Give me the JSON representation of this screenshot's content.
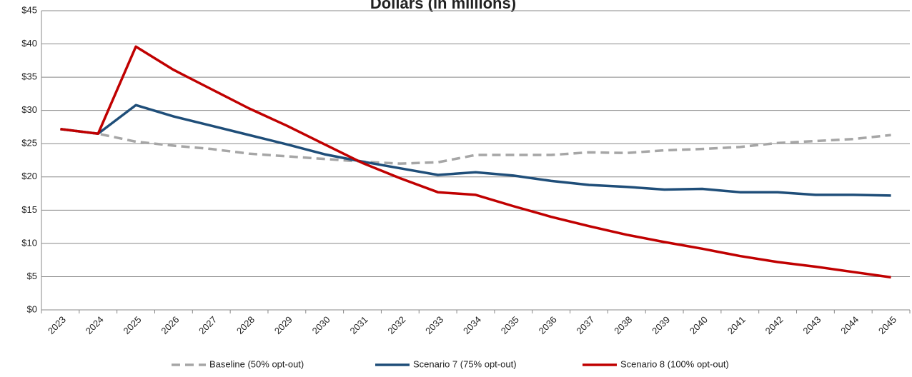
{
  "chart_data": {
    "type": "line",
    "title": "Dollars (in millions)",
    "categories": [
      "2023",
      "2024",
      "2025",
      "2026",
      "2027",
      "2028",
      "2029",
      "2030",
      "2031",
      "2032",
      "2033",
      "2034",
      "2035",
      "2036",
      "2037",
      "2038",
      "2039",
      "2040",
      "2041",
      "2042",
      "2043",
      "2044",
      "2045"
    ],
    "series": [
      {
        "name": "Baseline (50% opt-out)",
        "color": "#a6a6a6",
        "dashed": true,
        "values": [
          27.2,
          26.5,
          25.3,
          24.7,
          24.2,
          23.5,
          23.1,
          22.7,
          22.3,
          22.0,
          22.2,
          23.3,
          23.3,
          23.3,
          23.7,
          23.6,
          24.0,
          24.2,
          24.5,
          25.1,
          25.4,
          25.7,
          26.3
        ]
      },
      {
        "name": "Scenario 7 (75% opt-out)",
        "color": "#1f4e79",
        "dashed": false,
        "values": [
          27.2,
          26.5,
          30.8,
          29.1,
          27.7,
          26.3,
          24.9,
          23.4,
          22.3,
          21.3,
          20.3,
          20.7,
          20.2,
          19.4,
          18.8,
          18.5,
          18.1,
          18.2,
          17.7,
          17.7,
          17.3,
          17.3,
          17.2
        ]
      },
      {
        "name": "Scenario 8 (100% opt-out)",
        "color": "#c00000",
        "dashed": false,
        "values": [
          27.2,
          26.5,
          39.6,
          36.1,
          33.2,
          30.3,
          27.7,
          24.9,
          22.1,
          19.8,
          17.7,
          17.3,
          15.6,
          14.0,
          12.6,
          11.3,
          10.2,
          9.2,
          8.1,
          7.2,
          6.5,
          5.7,
          4.9
        ]
      }
    ],
    "ylim": [
      0,
      45
    ],
    "yticks": [
      {
        "value": 0,
        "label": "$0"
      },
      {
        "value": 5,
        "label": "$5"
      },
      {
        "value": 10,
        "label": "$10"
      },
      {
        "value": 15,
        "label": "$15"
      },
      {
        "value": 20,
        "label": "$20"
      },
      {
        "value": 25,
        "label": "$25"
      },
      {
        "value": 30,
        "label": "$30"
      },
      {
        "value": 35,
        "label": "$35"
      },
      {
        "value": 40,
        "label": "$40"
      },
      {
        "value": 45,
        "label": "$45"
      }
    ],
    "grid": true,
    "legend": "bottom"
  }
}
